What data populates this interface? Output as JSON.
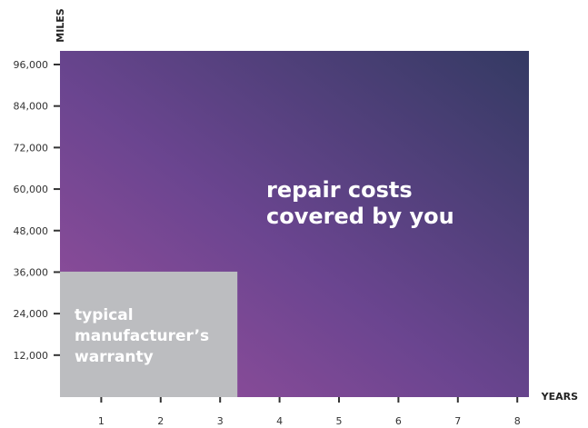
{
  "chart_data": {
    "type": "area",
    "xlabel": "YEARS",
    "ylabel": "MILES",
    "x_ticks": [
      1,
      2,
      3,
      4,
      5,
      6,
      7,
      8
    ],
    "y_ticks": [
      "12,000",
      "24,000",
      "36,000",
      "48,000",
      "60,000",
      "72,000",
      "84,000",
      "96,000"
    ],
    "y_tick_values": [
      12000,
      24000,
      36000,
      48000,
      60000,
      72000,
      84000,
      96000
    ],
    "xlim": [
      0,
      8
    ],
    "ylim": [
      0,
      100000
    ],
    "regions": [
      {
        "label_lines": [
          "repair costs",
          "covered by you"
        ],
        "x_range": [
          0,
          8
        ],
        "y_range": [
          0,
          100000
        ]
      },
      {
        "label_lines": [
          "typical",
          "manufacturer’s",
          "warranty"
        ],
        "x_range": [
          0,
          3
        ],
        "y_range": [
          0,
          36000
        ]
      }
    ],
    "colors": {
      "gradient_start": "#9a4f9d",
      "gradient_mid": "#6b4590",
      "gradient_end": "#343a63",
      "warranty": "#bcbdc0",
      "axis": "#333333"
    }
  }
}
